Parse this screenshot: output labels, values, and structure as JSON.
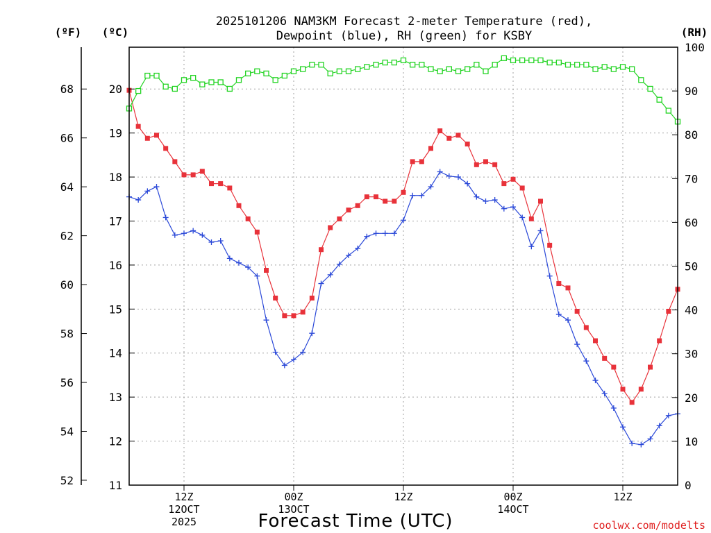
{
  "title_line1": "2025101206 NAM3KM Forecast 2-meter Temperature (red),",
  "title_line2": "Dewpoint (blue), RH (green) for KSBY",
  "units": {
    "fahrenheit": "(ºF)",
    "celsius": "(ºC)",
    "rh": "(RH)"
  },
  "xlabel": "Forecast Time (UTC)",
  "credit": "coolwx.com/modelts",
  "colors": {
    "temperature": "#e8323a",
    "dewpoint": "#2a48d8",
    "rh": "#22d422",
    "grid": "#a0a0a0"
  },
  "chart_data": {
    "type": "line",
    "title": "2025101206 NAM3KM Forecast 2-meter Temperature (red), Dewpoint (blue), RH (green) for KSBY",
    "xlabel": "Forecast Time (UTC)",
    "x_unit": "forecast hour from 2025-10-12 06Z",
    "xlim": [
      0,
      60
    ],
    "x_ticks": [
      {
        "x": 6,
        "lines": [
          "12Z",
          "12OCT",
          "2025"
        ]
      },
      {
        "x": 18,
        "lines": [
          "00Z",
          "13OCT"
        ]
      },
      {
        "x": 30,
        "lines": [
          "12Z"
        ]
      },
      {
        "x": 42,
        "lines": [
          "00Z",
          "14OCT"
        ]
      },
      {
        "x": 54,
        "lines": [
          "12Z"
        ]
      }
    ],
    "y_left_celsius": {
      "label": "(ºC)",
      "lim": [
        11,
        20.95
      ],
      "ticks": [
        11,
        12,
        13,
        14,
        15,
        16,
        17,
        18,
        19,
        20
      ]
    },
    "y_left_fahrenheit": {
      "label": "(ºF)",
      "ticks": [
        52,
        54,
        56,
        58,
        60,
        62,
        64,
        66,
        68
      ]
    },
    "y_right_rh": {
      "label": "(RH)",
      "lim": [
        0,
        100
      ],
      "ticks": [
        0,
        10,
        20,
        30,
        40,
        50,
        60,
        70,
        80,
        90,
        100
      ]
    },
    "x": [
      0,
      1,
      2,
      3,
      4,
      5,
      6,
      7,
      8,
      9,
      10,
      11,
      12,
      13,
      14,
      15,
      16,
      17,
      18,
      19,
      20,
      21,
      22,
      23,
      24,
      25,
      26,
      27,
      28,
      29,
      30,
      31,
      32,
      33,
      34,
      35,
      36,
      37,
      38,
      39,
      40,
      41,
      42,
      43,
      44,
      45,
      46,
      47,
      48,
      49,
      50,
      51,
      52,
      53,
      54,
      55,
      56,
      57,
      58,
      59,
      60
    ],
    "series": [
      {
        "name": "Temperature",
        "axis": "celsius",
        "color": "#e8323a",
        "marker": "filled-square",
        "values": [
          19.97,
          19.15,
          18.88,
          18.95,
          18.65,
          18.35,
          18.05,
          18.05,
          18.13,
          17.85,
          17.85,
          17.75,
          17.35,
          17.05,
          16.75,
          15.88,
          15.25,
          14.85,
          14.85,
          14.93,
          15.25,
          16.35,
          16.85,
          17.05,
          17.25,
          17.35,
          17.55,
          17.55,
          17.45,
          17.45,
          17.65,
          18.35,
          18.35,
          18.65,
          19.05,
          18.88,
          18.95,
          18.75,
          18.28,
          18.35,
          18.28,
          17.85,
          17.95,
          17.75,
          17.05,
          17.45,
          16.45,
          15.58,
          15.48,
          14.95,
          14.58,
          14.28,
          13.88,
          13.68,
          13.18,
          12.88,
          13.18,
          13.68,
          14.28,
          14.95,
          15.45
        ]
      },
      {
        "name": "Dewpoint",
        "axis": "celsius",
        "color": "#2a48d8",
        "marker": "plus",
        "values": [
          17.55,
          17.48,
          17.68,
          17.78,
          17.08,
          16.68,
          16.72,
          16.78,
          16.68,
          16.52,
          16.55,
          16.15,
          16.05,
          15.95,
          15.75,
          14.75,
          14.02,
          13.72,
          13.85,
          14.02,
          14.45,
          15.58,
          15.78,
          16.02,
          16.22,
          16.38,
          16.65,
          16.72,
          16.72,
          16.72,
          17.02,
          17.58,
          17.58,
          17.78,
          18.12,
          18.02,
          18.0,
          17.85,
          17.55,
          17.45,
          17.48,
          17.28,
          17.32,
          17.08,
          16.42,
          16.78,
          15.75,
          14.88,
          14.75,
          14.2,
          13.82,
          13.38,
          13.08,
          12.75,
          12.32,
          11.95,
          11.92,
          12.05,
          12.35,
          12.58,
          12.62
        ]
      },
      {
        "name": "RH",
        "axis": "rh",
        "color": "#22d422",
        "marker": "open-square",
        "values": [
          86,
          90,
          93.5,
          93.5,
          91,
          90.5,
          92.5,
          93,
          91.5,
          92,
          92,
          90.5,
          92.5,
          94,
          94.5,
          94,
          92.5,
          93.5,
          94.5,
          95,
          96,
          96,
          94,
          94.5,
          94.5,
          95,
          95.5,
          96,
          96.5,
          96.5,
          97,
          96,
          96,
          95,
          94.5,
          95,
          94.5,
          95,
          96,
          94.5,
          96,
          97.5,
          97,
          97,
          97,
          97,
          96.5,
          96.5,
          96,
          96,
          96,
          95,
          95.5,
          95,
          95.5,
          95,
          92.5,
          90.5,
          88,
          85.5,
          83
        ]
      }
    ]
  }
}
